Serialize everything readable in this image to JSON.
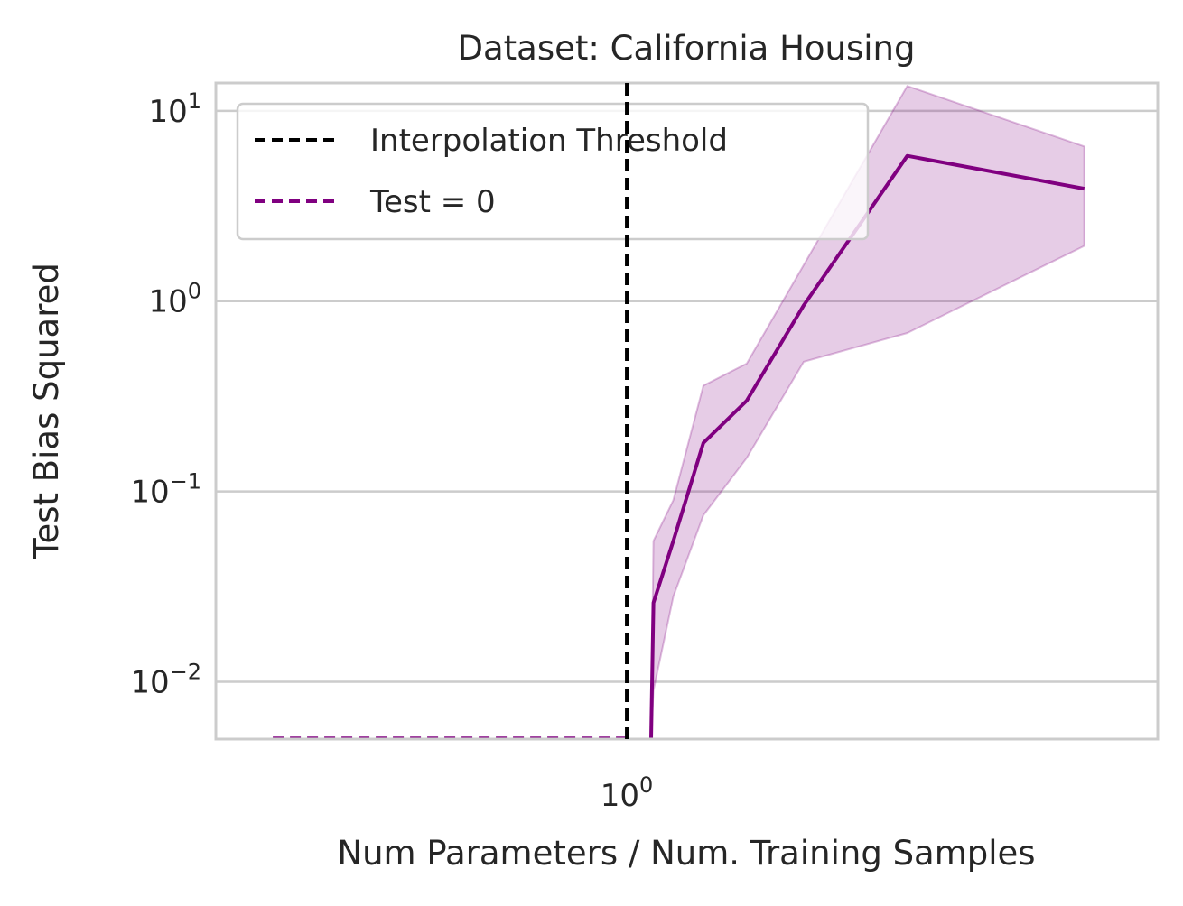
{
  "chart_data": {
    "type": "line",
    "title": "Dataset: California Housing",
    "xlabel": "Num Parameters / Num. Training Samples",
    "ylabel": "Test Bias Squared",
    "xscale": "log",
    "yscale": "log",
    "xlim": [
      0.2,
      8.0
    ],
    "ylim": [
      0.005,
      14.0
    ],
    "grid": "horizontal",
    "legend": {
      "placement": "top-left",
      "entries": [
        {
          "label": "Interpolation Threshold",
          "color": "#000000",
          "style": "dashed"
        },
        {
          "label": "Test = 0",
          "color": "#800080",
          "style": "dashed"
        }
      ]
    },
    "xticks": [
      {
        "value": 1,
        "base": "10",
        "exp": "0"
      }
    ],
    "yticks": [
      {
        "value": 10,
        "base": "10",
        "exp": "1"
      },
      {
        "value": 1,
        "base": "10",
        "exp": "0"
      },
      {
        "value": 0.1,
        "base": "10",
        "exp": "−1"
      },
      {
        "value": 0.01,
        "base": "10",
        "exp": "−2"
      }
    ],
    "threshold_x": 1.0,
    "zero_series": {
      "name": "Test = 0",
      "x_start": 0.25,
      "x_end": 1.0,
      "color": "#800080"
    },
    "series": [
      {
        "name": "Test",
        "color": "#800080",
        "x": [
          1.1,
          1.11,
          1.2,
          1.35,
          1.6,
          2.0,
          3.0,
          6.0
        ],
        "y": [
          0.005,
          0.026,
          0.055,
          0.18,
          0.3,
          0.95,
          5.8,
          3.9
        ],
        "y_lower": [
          0.005,
          0.009,
          0.028,
          0.075,
          0.15,
          0.48,
          0.68,
          1.95
        ],
        "y_upper": [
          0.005,
          0.055,
          0.09,
          0.36,
          0.47,
          1.55,
          13.5,
          6.5
        ]
      }
    ]
  }
}
